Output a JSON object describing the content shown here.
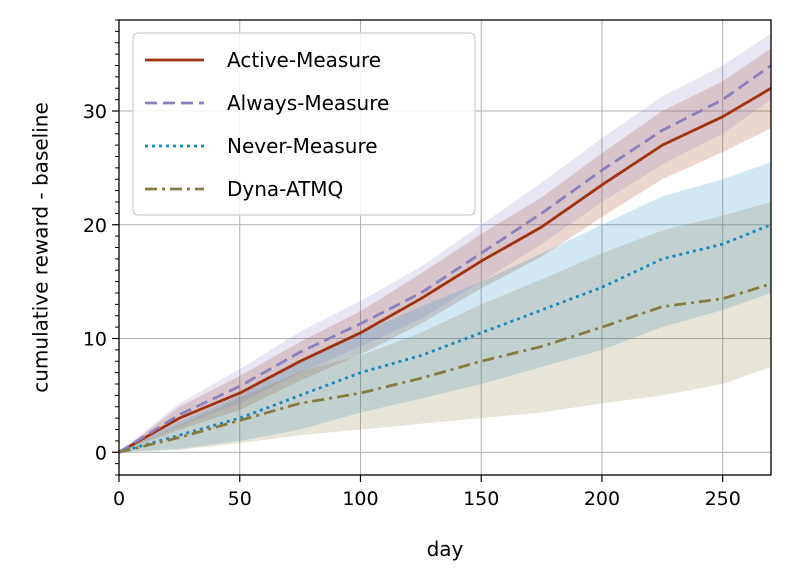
{
  "chart_data": {
    "type": "line",
    "title": "",
    "xlabel": "day",
    "ylabel": "cumulative reward - baseline",
    "xlim": [
      0,
      270
    ],
    "ylim": [
      -2,
      38
    ],
    "x_ticks": [
      0,
      50,
      100,
      150,
      200,
      250
    ],
    "y_ticks": [
      0,
      10,
      20,
      30
    ],
    "grid": true,
    "legend_position": "top-left",
    "x": [
      0,
      25,
      50,
      75,
      100,
      125,
      150,
      175,
      200,
      225,
      250,
      270
    ],
    "series": [
      {
        "name": "Active-Measure",
        "color": "#a0320e",
        "dash": "solid",
        "values": [
          0,
          3,
          5.2,
          8.0,
          10.5,
          13.5,
          16.8,
          19.8,
          23.5,
          27.0,
          29.5,
          32
        ],
        "lower": [
          0,
          2,
          3.7,
          6.3,
          8.6,
          11.3,
          14.4,
          17.2,
          20.7,
          24.0,
          26.4,
          28.5
        ],
        "upper": [
          0,
          4,
          6.7,
          9.7,
          12.4,
          15.7,
          19.2,
          22.4,
          26.3,
          30.0,
          32.6,
          35.5
        ]
      },
      {
        "name": "Always-Measure",
        "color": "#8a80bd",
        "dash": "dashed",
        "values": [
          0,
          3.3,
          5.8,
          8.8,
          11.3,
          14.0,
          17.5,
          21.0,
          24.8,
          28.3,
          31.0,
          34
        ],
        "lower": [
          0,
          2.3,
          4.3,
          7.0,
          9.3,
          11.7,
          15.0,
          18.3,
          22.0,
          25.3,
          28.0,
          31.0
        ],
        "upper": [
          0,
          4.3,
          7.3,
          10.6,
          13.3,
          16.3,
          20.0,
          23.7,
          27.6,
          31.3,
          34.0,
          36.8
        ]
      },
      {
        "name": "Never-Measure",
        "color": "#1a88c0",
        "dash": "dotted",
        "values": [
          0,
          1.5,
          3.0,
          5.0,
          7.0,
          8.5,
          10.5,
          12.5,
          14.5,
          17.0,
          18.3,
          20
        ],
        "lower": [
          0,
          0.3,
          1.0,
          2.0,
          3.5,
          4.7,
          6.0,
          7.5,
          9.0,
          11.0,
          12.5,
          14.0
        ],
        "upper": [
          0,
          2.7,
          5.0,
          8.0,
          10.5,
          12.8,
          15.0,
          17.5,
          20.0,
          22.5,
          24.0,
          25.5
        ]
      },
      {
        "name": "Dyna-ATMQ",
        "color": "#877b45",
        "dash": "dashdot",
        "values": [
          0,
          1.3,
          2.8,
          4.3,
          5.2,
          6.5,
          8.0,
          9.3,
          11.0,
          12.8,
          13.5,
          14.8
        ],
        "lower": [
          0,
          0.2,
          0.8,
          1.5,
          2.0,
          2.5,
          3.0,
          3.5,
          4.3,
          5.0,
          6.0,
          7.5
        ],
        "upper": [
          0,
          2.4,
          4.8,
          7.1,
          8.5,
          10.5,
          13.0,
          15.2,
          17.5,
          19.5,
          20.8,
          22.0
        ]
      }
    ]
  }
}
